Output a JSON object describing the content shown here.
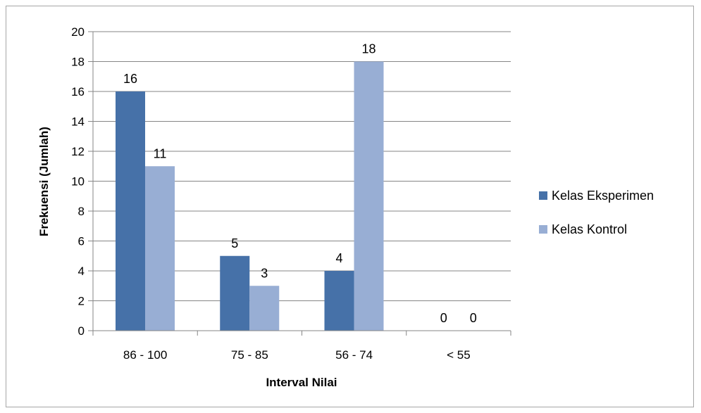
{
  "chart_data": {
    "type": "bar",
    "categories": [
      "86 - 100",
      "75 - 85",
      "56 - 74",
      "< 55"
    ],
    "series": [
      {
        "name": "Kelas Eksperimen",
        "values": [
          16,
          5,
          4,
          0
        ],
        "color": "#4671a8"
      },
      {
        "name": "Kelas Kontrol",
        "values": [
          11,
          3,
          18,
          0
        ],
        "color": "#98aed4"
      }
    ],
    "xlabel": "Interval Nilai",
    "ylabel": "Frekuensi (Jumlah)",
    "ylim": [
      0,
      20
    ],
    "yticks": [
      0,
      2,
      4,
      6,
      8,
      10,
      12,
      14,
      16,
      18,
      20
    ],
    "grid": true,
    "legend_position": "right",
    "data_labels": true,
    "gridline_color": "#868686",
    "axis_color": "#868686"
  }
}
